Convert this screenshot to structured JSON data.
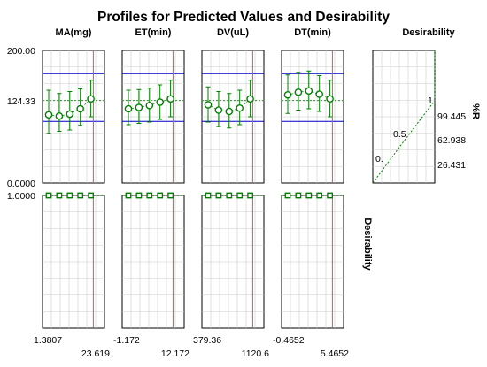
{
  "chart_data": {
    "type": "line",
    "title": "Profiles for Predicted Values and Desirability",
    "colors": {
      "profile_line": "#008000",
      "marker": "#008000",
      "spec_line": "#0000cc",
      "current_setting": "#e05050",
      "grid": "#cccccc",
      "desirability_curve": "#008000"
    },
    "top_y_axis": {
      "ylim": [
        0,
        200
      ],
      "tick_labels": [
        "200.00",
        "124.33",
        "0.0000"
      ]
    },
    "bottom_y_axis": {
      "ylim": [
        0,
        1
      ],
      "tick_labels": [
        "1.0000"
      ],
      "label": "Desirability"
    },
    "spec_lines": {
      "upper": 165,
      "lower": 93,
      "predicted": 124.33
    },
    "factors": [
      {
        "name": "MA(mg)",
        "axis_min_label": "1.3807",
        "axis_max_label": "23.619",
        "x": [
          0.1,
          0.27,
          0.44,
          0.61,
          0.78
        ],
        "current_x": 0.82,
        "predicted": [
          103,
          101,
          104,
          112,
          127
        ],
        "ci_low": [
          75,
          78,
          80,
          87,
          100
        ],
        "ci_high": [
          140,
          135,
          138,
          142,
          155
        ],
        "desirability": [
          1,
          1,
          1,
          1,
          1
        ]
      },
      {
        "name": "ET(min)",
        "axis_min_label": "-1.172",
        "axis_max_label": "12.172",
        "x": [
          0.1,
          0.27,
          0.44,
          0.61,
          0.78
        ],
        "current_x": 0.82,
        "predicted": [
          112,
          114,
          117,
          122,
          127
        ],
        "ci_low": [
          88,
          90,
          92,
          96,
          100
        ],
        "ci_high": [
          140,
          141,
          143,
          148,
          155
        ],
        "desirability": [
          1,
          1,
          1,
          1,
          1
        ]
      },
      {
        "name": "DV(uL)",
        "axis_min_label": "379.36",
        "axis_max_label": "1120.6",
        "x": [
          0.1,
          0.27,
          0.44,
          0.61,
          0.78
        ],
        "current_x": 0.82,
        "predicted": [
          118,
          110,
          108,
          113,
          127
        ],
        "ci_low": [
          92,
          85,
          83,
          88,
          100
        ],
        "ci_high": [
          145,
          138,
          135,
          140,
          155
        ],
        "desirability": [
          1,
          1,
          1,
          1,
          1
        ]
      },
      {
        "name": "DT(min)",
        "axis_min_label": "-0.4652",
        "axis_max_label": "5.4652",
        "x": [
          0.1,
          0.27,
          0.44,
          0.61,
          0.78
        ],
        "current_x": 0.82,
        "predicted": [
          133,
          137,
          139,
          134,
          127
        ],
        "ci_low": [
          105,
          110,
          112,
          108,
          100
        ],
        "ci_high": [
          163,
          167,
          169,
          162,
          155
        ],
        "desirability": [
          1,
          1,
          1,
          1,
          1
        ]
      }
    ],
    "desirability_panel": {
      "title": "Desirability",
      "axis_label": "%R",
      "right_tick_labels": [
        "99.445",
        "62.938",
        "26.431"
      ],
      "right_tick_values": [
        99.445,
        62.938,
        26.431
      ],
      "curve_labels": [
        "0.",
        "0.5",
        "1"
      ],
      "desirability_at": [
        0,
        0.5,
        1
      ],
      "response_at": [
        0,
        62.938,
        124.33
      ]
    }
  }
}
